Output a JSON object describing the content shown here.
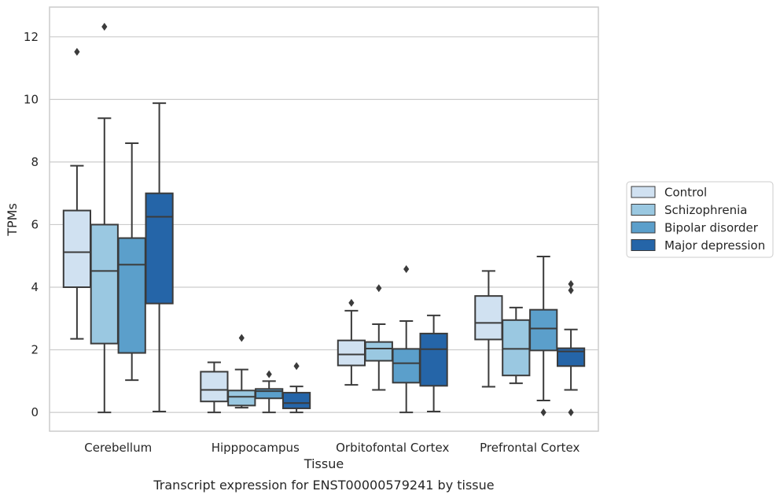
{
  "caption": "Transcript expression for ENST00000579241 by tissue",
  "chart_data": {
    "type": "boxplot",
    "xlabel": "Tissue",
    "ylabel": "TPMs",
    "ylim": [
      -0.6,
      12.95
    ],
    "yticks": [
      0,
      2,
      4,
      6,
      8,
      10,
      12
    ],
    "grid": "horizontal",
    "legend_position": "right",
    "categories": [
      "Cerebellum",
      "Hipppocampus",
      "Orbitofontal Cortex",
      "Prefrontal Cortex"
    ],
    "series": [
      {
        "name": "Control",
        "color": "#d0e1f1",
        "boxes": [
          {
            "whislo": 2.35,
            "q1": 4.0,
            "med": 5.12,
            "q3": 6.45,
            "whishi": 7.88,
            "fliers": [
              11.52
            ]
          },
          {
            "whislo": 0.0,
            "q1": 0.35,
            "med": 0.72,
            "q3": 1.3,
            "whishi": 1.6,
            "fliers": []
          },
          {
            "whislo": 0.88,
            "q1": 1.5,
            "med": 1.85,
            "q3": 2.3,
            "whishi": 3.25,
            "fliers": [
              3.5
            ]
          },
          {
            "whislo": 0.82,
            "q1": 2.33,
            "med": 2.86,
            "q3": 3.72,
            "whishi": 4.52,
            "fliers": []
          }
        ]
      },
      {
        "name": "Schizophrenia",
        "color": "#9ac8e1",
        "boxes": [
          {
            "whislo": 0.0,
            "q1": 2.2,
            "med": 4.52,
            "q3": 6.0,
            "whishi": 9.4,
            "fliers": [
              12.32
            ]
          },
          {
            "whislo": 0.15,
            "q1": 0.22,
            "med": 0.5,
            "q3": 0.7,
            "whishi": 1.37,
            "fliers": [
              2.38
            ]
          },
          {
            "whislo": 0.72,
            "q1": 1.65,
            "med": 2.04,
            "q3": 2.25,
            "whishi": 2.82,
            "fliers": [
              3.97
            ]
          },
          {
            "whislo": 0.93,
            "q1": 1.18,
            "med": 2.03,
            "q3": 2.95,
            "whishi": 3.35,
            "fliers": []
          }
        ]
      },
      {
        "name": "Bipolar disorder",
        "color": "#5b9fcb",
        "boxes": [
          {
            "whislo": 1.03,
            "q1": 1.9,
            "med": 4.72,
            "q3": 5.57,
            "whishi": 8.6,
            "fliers": []
          },
          {
            "whislo": 0.0,
            "q1": 0.45,
            "med": 0.68,
            "q3": 0.75,
            "whishi": 1.0,
            "fliers": [
              1.22
            ]
          },
          {
            "whislo": 0.0,
            "q1": 0.95,
            "med": 1.57,
            "q3": 2.03,
            "whishi": 2.92,
            "fliers": [
              4.58
            ]
          },
          {
            "whislo": 0.38,
            "q1": 1.98,
            "med": 2.68,
            "q3": 3.28,
            "whishi": 4.98,
            "fliers": [
              0.0
            ]
          }
        ]
      },
      {
        "name": "Major depression",
        "color": "#2565a8",
        "boxes": [
          {
            "whislo": 0.03,
            "q1": 3.48,
            "med": 6.25,
            "q3": 7.0,
            "whishi": 9.88,
            "fliers": []
          },
          {
            "whislo": 0.0,
            "q1": 0.13,
            "med": 0.3,
            "q3": 0.63,
            "whishi": 0.83,
            "fliers": [
              1.48
            ]
          },
          {
            "whislo": 0.03,
            "q1": 0.85,
            "med": 2.02,
            "q3": 2.52,
            "whishi": 3.1,
            "fliers": []
          },
          {
            "whislo": 0.72,
            "q1": 1.48,
            "med": 1.95,
            "q3": 2.05,
            "whishi": 2.65,
            "fliers": [
              4.1,
              3.9,
              0.0
            ]
          }
        ]
      }
    ]
  }
}
